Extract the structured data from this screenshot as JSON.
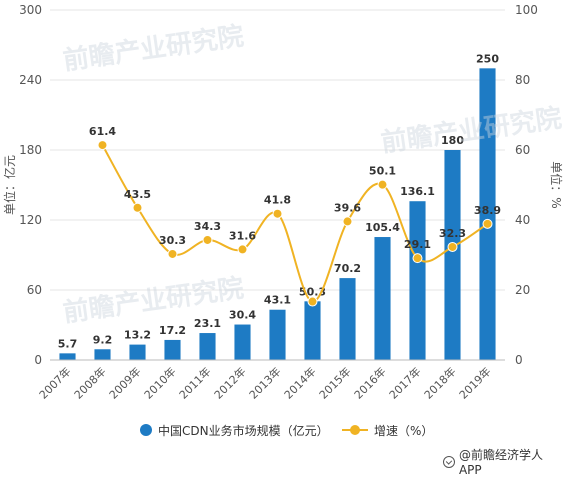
{
  "chart_data": {
    "type": "bar",
    "categories": [
      "2007年",
      "2008年",
      "2009年",
      "2010年",
      "2011年",
      "2012年",
      "2013年",
      "2014年",
      "2015年",
      "2016年",
      "2017年",
      "2018年",
      "2019年"
    ],
    "series": [
      {
        "name": "中国CDN业务市场规模（亿元）",
        "type": "bar",
        "axis": "left",
        "color": "#1E7BC4",
        "values": [
          5.7,
          9.2,
          13.2,
          17.2,
          23.1,
          30.4,
          43.1,
          50.3,
          70.2,
          105.4,
          136.1,
          180,
          250
        ]
      },
      {
        "name": "增速（%）",
        "type": "line",
        "axis": "right",
        "color": "#F0B323",
        "values": [
          null,
          61.4,
          43.5,
          30.3,
          34.3,
          31.6,
          41.8,
          16.7,
          39.6,
          50.1,
          29.1,
          32.3,
          38.9
        ]
      }
    ],
    "bar_labels": [
      "5.7",
      "9.2",
      "13.2",
      "17.2",
      "23.1",
      "30.4",
      "43.1",
      "50.3",
      "70.2",
      "105.4",
      "136.1",
      "180",
      "250"
    ],
    "line_labels": [
      "",
      "61.4",
      "43.5",
      "30.3",
      "34.3",
      "31.6",
      "41.8",
      "",
      "39.6",
      "50.1",
      "29.1",
      "32.3",
      "38.9"
    ],
    "left_axis": {
      "label": "单位：亿元",
      "ylim": [
        0,
        300
      ],
      "ticks": [
        "0",
        "60",
        "120",
        "180",
        "240",
        "300"
      ]
    },
    "right_axis": {
      "label": "单位：%",
      "ylim": [
        0,
        100
      ],
      "ticks": [
        "0",
        "20",
        "40",
        "60",
        "80",
        "100"
      ]
    },
    "grid": true,
    "legend": "bottom"
  },
  "legend": {
    "bar_label": "中国CDN业务市场规模（亿元）",
    "line_label": "增速（%）"
  },
  "source": "@前瞻经济学人APP",
  "watermark": "前瞻产业研究院"
}
